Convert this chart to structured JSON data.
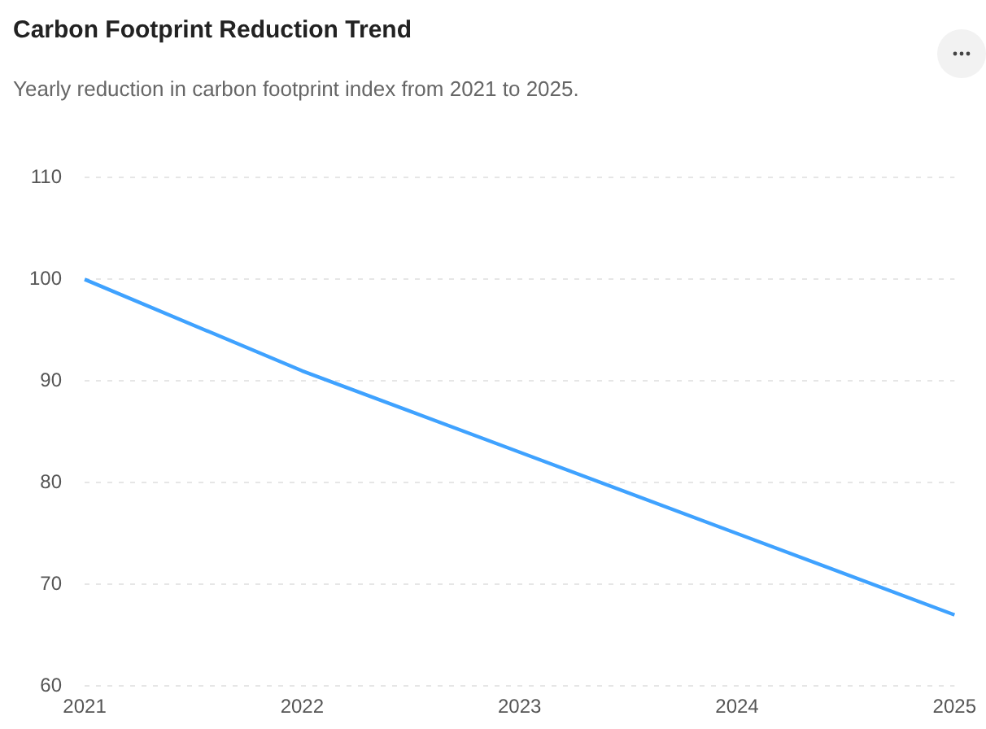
{
  "chart_data": {
    "type": "line",
    "title": "Carbon Footprint Reduction Trend",
    "subtitle": "Yearly reduction in carbon footprint index from 2021 to 2025.",
    "categories": [
      "2021",
      "2022",
      "2023",
      "2024",
      "2025"
    ],
    "series": [
      {
        "color": "#3fa2ff",
        "values": [
          100,
          91,
          83,
          75,
          67
        ]
      }
    ],
    "ylim": [
      60,
      110
    ],
    "yticks": [
      60,
      70,
      80,
      90,
      100,
      110
    ],
    "grid": "y",
    "legend": false,
    "marker": "none",
    "line_style": "solid"
  }
}
